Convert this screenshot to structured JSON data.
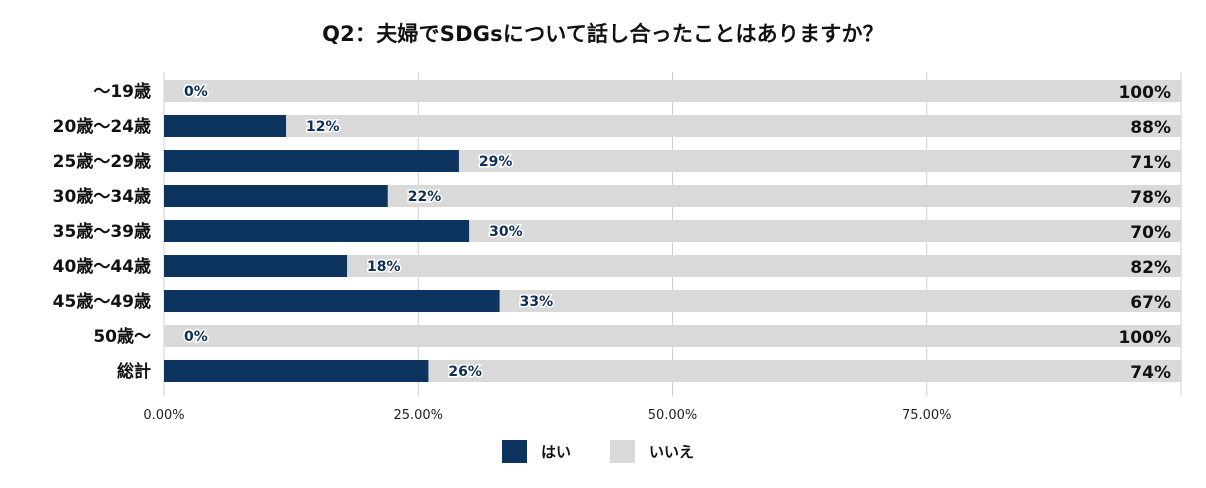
{
  "title": "Q2：夫婦でSDGsについて話し合ったことはありますか？",
  "chart_data": {
    "type": "bar",
    "orientation": "horizontal",
    "stacked": true,
    "title": "Q2：夫婦でSDGsについて話し合ったことはありますか？",
    "categories": [
      "～19歳",
      "20歳～24歳",
      "25歳～29歳",
      "30歳～34歳",
      "35歳～39歳",
      "40歳～44歳",
      "45歳～49歳",
      "50歳～",
      "総計"
    ],
    "series": [
      {
        "name": "はい",
        "color": "#0d345e",
        "values": [
          0,
          12,
          29,
          22,
          30,
          18,
          33,
          0,
          26
        ],
        "labels": [
          "0%",
          "12%",
          "29%",
          "22%",
          "30%",
          "18%",
          "33%",
          "0%",
          "26%"
        ]
      },
      {
        "name": "いいえ",
        "color": "#d9d9d9",
        "values": [
          100,
          88,
          71,
          78,
          70,
          82,
          67,
          100,
          74
        ],
        "labels": [
          "100%",
          "88%",
          "71%",
          "78%",
          "70%",
          "82%",
          "67%",
          "100%",
          "74%"
        ]
      }
    ],
    "xlim": [
      0,
      100
    ],
    "xticks": [
      0,
      25,
      50,
      75
    ],
    "xtick_labels": [
      "0.00%",
      "25.00%",
      "50.00%",
      "75.00%"
    ],
    "grid": true,
    "legend": "bottom"
  }
}
